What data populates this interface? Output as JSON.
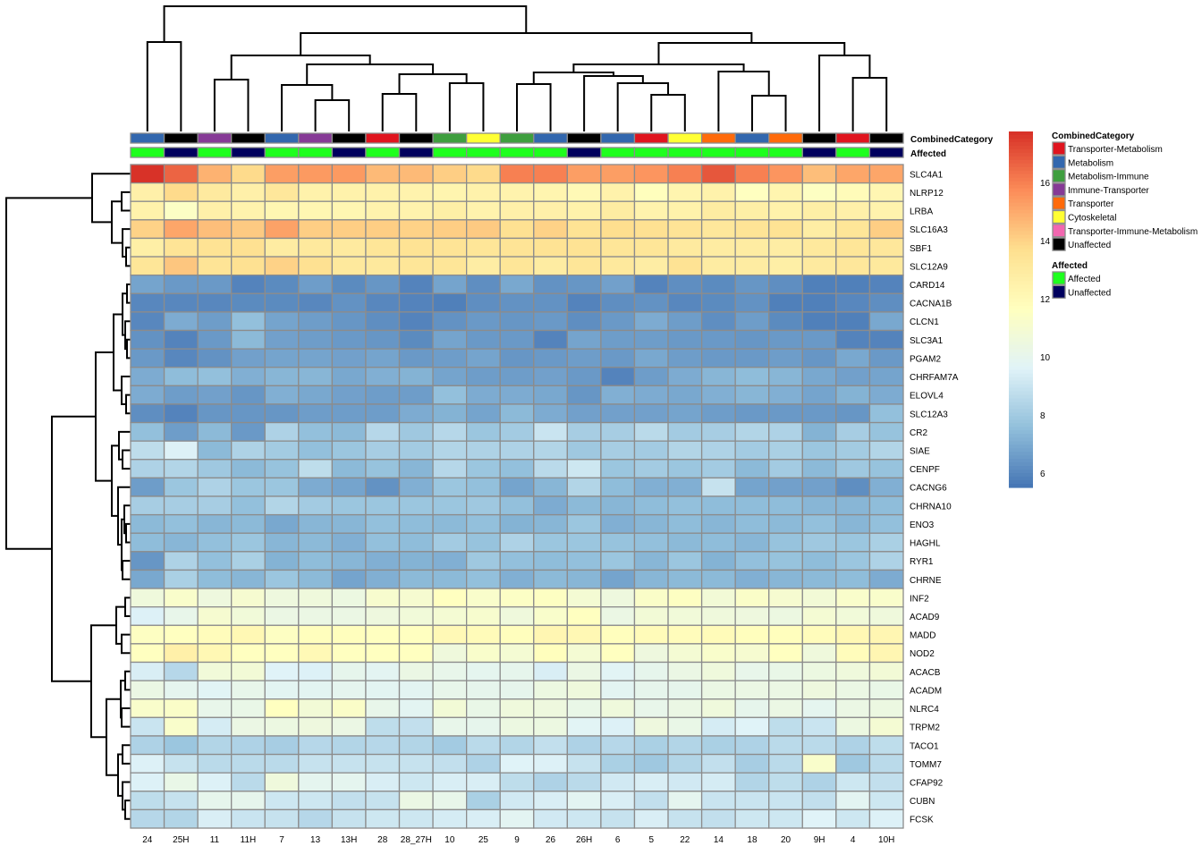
{
  "chart_data": {
    "type": "heatmap",
    "columns": [
      "24",
      "25H",
      "11",
      "11H",
      "7",
      "13",
      "13H",
      "28",
      "28_27H",
      "10",
      "25",
      "9",
      "26",
      "26H",
      "6",
      "5",
      "22",
      "14",
      "18",
      "20",
      "9H",
      "4",
      "10H"
    ],
    "rows": [
      "SLC4A1",
      "NLRP12",
      "LRBA",
      "SLC16A3",
      "SBF1",
      "SLC12A9",
      "CARD14",
      "CACNA1B",
      "CLCN1",
      "SLC3A1",
      "PGAM2",
      "CHRFAM7A",
      "ELOVL4",
      "SLC12A3",
      "CR2",
      "SIAE",
      "CENPF",
      "CACNG6",
      "CHRNA10",
      "ENO3",
      "HAGHL",
      "RYR1",
      "CHRNE",
      "INF2",
      "ACAD9",
      "MADD",
      "NOD2",
      "ACACB",
      "ACADM",
      "NLRC4",
      "TRPM2",
      "TACO1",
      "TOMM7",
      "CFAP92",
      "CUBN",
      "FCSK"
    ],
    "values": [
      [
        17.7,
        16.6,
        14.8,
        13.8,
        15.3,
        15.4,
        15.4,
        14.6,
        14.6,
        14.1,
        13.8,
        16.0,
        16.0,
        15.3,
        15.3,
        15.5,
        16.0,
        16.9,
        16.0,
        15.5,
        14.5,
        15.1,
        15.1
      ],
      [
        12.6,
        13.8,
        13.0,
        12.6,
        13.2,
        12.5,
        12.5,
        12.5,
        12.4,
        12.3,
        12.5,
        12.4,
        12.3,
        12.0,
        12.5,
        11.7,
        12.3,
        12.5,
        11.6,
        12.3,
        11.5,
        11.9,
        12.2
      ],
      [
        12.5,
        11.4,
        12.6,
        12.4,
        12.2,
        12.2,
        12.2,
        12.4,
        12.4,
        12.7,
        12.4,
        12.6,
        12.6,
        12.5,
        12.9,
        12.4,
        12.5,
        12.9,
        12.7,
        12.5,
        12.7,
        12.6,
        12.4
      ],
      [
        14.0,
        15.1,
        14.5,
        14.2,
        15.2,
        14.1,
        14.1,
        14.1,
        14.0,
        14.1,
        14.2,
        13.6,
        14.0,
        13.5,
        13.7,
        13.6,
        13.4,
        13.2,
        13.4,
        13.5,
        12.8,
        13.3,
        14.1
      ],
      [
        12.7,
        13.4,
        13.5,
        13.6,
        12.9,
        13.1,
        13.0,
        13.3,
        13.5,
        13.4,
        13.3,
        13.4,
        13.5,
        13.5,
        13.3,
        13.3,
        13.0,
        12.9,
        12.9,
        12.8,
        13.1,
        13.3,
        13.2
      ],
      [
        13.3,
        14.3,
        13.4,
        13.6,
        14.0,
        13.6,
        13.1,
        13.1,
        13.3,
        13.3,
        12.8,
        13.3,
        12.9,
        13.3,
        13.1,
        12.8,
        13.5,
        12.9,
        12.9,
        12.7,
        13.0,
        13.2,
        13.1
      ],
      [
        6.8,
        6.5,
        6.5,
        5.9,
        6.1,
        6.6,
        6.1,
        6.4,
        5.9,
        6.8,
        6.2,
        6.9,
        6.3,
        6.4,
        6.7,
        5.9,
        6.2,
        6.1,
        6.4,
        6.2,
        5.8,
        5.8,
        5.9
      ],
      [
        6.0,
        6.0,
        6.0,
        6.1,
        6.1,
        6.0,
        6.3,
        6.0,
        5.9,
        5.8,
        6.2,
        6.3,
        6.3,
        5.9,
        6.2,
        6.3,
        6.0,
        6.1,
        6.3,
        5.8,
        5.8,
        6.0,
        6.2
      ],
      [
        6.0,
        7.0,
        6.6,
        7.6,
        6.8,
        6.6,
        6.4,
        6.2,
        5.9,
        6.3,
        6.5,
        6.4,
        6.5,
        6.2,
        6.5,
        7.0,
        6.6,
        6.2,
        6.6,
        6.1,
        5.8,
        5.8,
        6.9
      ],
      [
        6.3,
        5.9,
        6.5,
        7.4,
        6.7,
        6.6,
        6.5,
        6.4,
        6.1,
        6.8,
        6.5,
        6.5,
        5.9,
        6.8,
        6.6,
        6.6,
        6.5,
        6.5,
        6.4,
        6.5,
        6.5,
        5.9,
        5.9
      ],
      [
        6.5,
        6.0,
        6.3,
        6.7,
        6.8,
        6.8,
        6.7,
        6.8,
        6.5,
        6.6,
        6.8,
        6.4,
        6.5,
        6.6,
        6.5,
        6.9,
        6.6,
        6.5,
        6.5,
        6.6,
        6.4,
        6.9,
        6.5
      ],
      [
        7.0,
        7.5,
        7.6,
        7.1,
        7.3,
        7.3,
        6.9,
        7.1,
        7.2,
        6.8,
        6.6,
        6.6,
        6.7,
        6.5,
        5.9,
        6.6,
        7.0,
        7.3,
        7.5,
        7.3,
        6.9,
        6.7,
        6.8
      ],
      [
        7.0,
        6.6,
        6.7,
        6.4,
        7.1,
        6.9,
        6.7,
        6.6,
        6.6,
        7.6,
        7.0,
        7.0,
        6.9,
        6.4,
        7.1,
        7.0,
        6.9,
        7.1,
        7.3,
        7.1,
        6.8,
        7.2,
        7.0
      ],
      [
        6.2,
        5.9,
        6.4,
        6.4,
        6.4,
        6.6,
        6.6,
        6.6,
        7.0,
        7.2,
        6.8,
        7.4,
        7.0,
        6.7,
        6.7,
        6.7,
        6.8,
        6.6,
        6.5,
        6.5,
        6.5,
        6.4,
        7.6
      ],
      [
        7.6,
        6.6,
        7.4,
        6.5,
        8.3,
        7.6,
        7.4,
        8.5,
        7.9,
        8.5,
        7.8,
        8.0,
        9.0,
        8.1,
        8.1,
        8.6,
        8.0,
        8.1,
        8.4,
        8.3,
        7.2,
        8.1,
        7.7
      ],
      [
        8.7,
        9.5,
        7.4,
        8.3,
        8.0,
        7.6,
        7.8,
        8.1,
        8.0,
        8.4,
        8.3,
        8.3,
        8.4,
        7.9,
        8.1,
        8.0,
        8.4,
        8.3,
        8.0,
        8.2,
        7.8,
        8.0,
        8.4
      ],
      [
        8.3,
        8.4,
        7.9,
        7.4,
        7.7,
        8.7,
        7.4,
        7.7,
        7.3,
        8.5,
        7.8,
        7.6,
        8.6,
        9.1,
        7.8,
        8.0,
        7.8,
        8.0,
        7.4,
        8.0,
        7.4,
        7.9,
        7.7
      ],
      [
        6.6,
        7.8,
        8.3,
        7.8,
        7.8,
        7.0,
        6.8,
        6.3,
        7.1,
        7.8,
        7.6,
        6.8,
        7.3,
        8.4,
        7.5,
        7.1,
        7.1,
        8.9,
        6.8,
        6.7,
        6.7,
        6.2,
        7.1
      ],
      [
        8.1,
        8.1,
        8.1,
        7.6,
        8.4,
        8.0,
        7.8,
        7.8,
        7.8,
        7.8,
        7.9,
        7.6,
        7.0,
        7.4,
        7.3,
        7.5,
        7.6,
        7.5,
        7.5,
        7.5,
        7.3,
        7.3,
        7.5
      ],
      [
        7.4,
        7.6,
        7.3,
        7.4,
        6.9,
        7.3,
        7.3,
        7.6,
        7.5,
        7.4,
        7.6,
        7.2,
        7.3,
        7.8,
        7.1,
        7.3,
        7.5,
        7.3,
        7.5,
        7.4,
        7.6,
        7.3,
        7.6
      ],
      [
        7.5,
        7.3,
        7.6,
        7.8,
        7.3,
        7.4,
        7.1,
        7.6,
        7.5,
        8.0,
        7.7,
        8.3,
        7.8,
        7.8,
        7.7,
        7.6,
        7.4,
        7.5,
        7.3,
        7.7,
        7.9,
        7.8,
        8.2
      ],
      [
        6.4,
        8.3,
        7.6,
        8.2,
        7.2,
        7.5,
        7.3,
        7.1,
        7.2,
        7.1,
        7.9,
        7.6,
        7.5,
        7.6,
        7.8,
        7.3,
        7.8,
        7.2,
        7.6,
        7.7,
        7.5,
        7.8,
        8.3
      ],
      [
        6.9,
        8.2,
        7.5,
        7.3,
        7.8,
        7.4,
        6.8,
        7.1,
        7.4,
        7.4,
        7.6,
        7.1,
        7.4,
        7.3,
        6.8,
        7.3,
        7.4,
        7.4,
        7.1,
        7.3,
        7.4,
        7.5,
        7.0
      ],
      [
        10.6,
        11.2,
        10.5,
        11.0,
        10.5,
        10.6,
        10.4,
        11.1,
        11.0,
        11.6,
        11.2,
        11.4,
        11.5,
        10.9,
        10.5,
        11.3,
        11.5,
        10.8,
        11.3,
        11.0,
        10.8,
        11.2,
        11.2
      ],
      [
        9.5,
        10.1,
        11.0,
        10.7,
        10.3,
        10.3,
        10.3,
        10.5,
        10.7,
        10.9,
        11.1,
        10.6,
        11.2,
        11.6,
        10.3,
        10.8,
        10.7,
        10.6,
        10.5,
        10.4,
        10.9,
        10.7,
        10.6
      ],
      [
        11.5,
        11.6,
        11.8,
        12.1,
        11.5,
        11.7,
        11.7,
        11.6,
        11.6,
        12.0,
        11.9,
        11.7,
        12.2,
        12.1,
        11.7,
        11.9,
        11.8,
        11.9,
        11.7,
        11.7,
        11.8,
        12.1,
        12.2
      ],
      [
        11.6,
        12.6,
        12.1,
        11.6,
        11.6,
        12.0,
        11.6,
        11.6,
        11.6,
        10.6,
        11.2,
        10.9,
        11.7,
        10.9,
        11.6,
        10.5,
        10.9,
        11.2,
        11.0,
        11.6,
        10.6,
        11.8,
        12.2
      ],
      [
        9.4,
        8.5,
        10.7,
        10.8,
        9.6,
        9.5,
        10.0,
        9.8,
        10.3,
        10.1,
        9.9,
        10.0,
        9.4,
        10.3,
        9.7,
        10.0,
        10.3,
        10.6,
        10.1,
        10.2,
        10.4,
        10.6,
        10.8
      ],
      [
        10.3,
        9.9,
        9.7,
        10.1,
        9.8,
        9.8,
        9.9,
        9.8,
        9.8,
        10.1,
        10.0,
        10.0,
        10.4,
        10.6,
        9.8,
        10.0,
        10.0,
        10.3,
        10.3,
        10.3,
        10.5,
        10.3,
        10.2
      ],
      [
        11.2,
        11.3,
        10.1,
        10.2,
        11.6,
        10.8,
        11.3,
        10.1,
        9.8,
        10.8,
        10.2,
        10.6,
        10.5,
        10.2,
        10.6,
        10.1,
        10.3,
        10.6,
        10.0,
        10.3,
        9.9,
        10.3,
        10.4
      ],
      [
        9.0,
        11.2,
        9.3,
        10.3,
        10.4,
        10.5,
        10.3,
        8.7,
        8.8,
        10.1,
        10.0,
        10.4,
        10.4,
        9.7,
        9.5,
        10.5,
        10.2,
        9.3,
        9.6,
        8.7,
        9.0,
        10.4,
        10.9
      ],
      [
        8.3,
        7.8,
        8.4,
        8.3,
        8.1,
        8.5,
        8.4,
        8.5,
        8.4,
        8.0,
        8.6,
        8.4,
        8.8,
        8.3,
        8.5,
        8.2,
        8.4,
        8.2,
        8.3,
        8.6,
        8.6,
        8.3,
        8.7
      ],
      [
        9.5,
        8.9,
        8.6,
        8.6,
        8.6,
        8.9,
        8.9,
        8.9,
        8.9,
        8.8,
        8.3,
        9.6,
        9.5,
        8.9,
        8.2,
        7.9,
        8.4,
        8.8,
        8.1,
        8.6,
        11.2,
        7.9,
        8.6
      ],
      [
        9.5,
        10.2,
        9.5,
        8.6,
        10.6,
        9.9,
        9.9,
        9.4,
        9.1,
        9.4,
        9.4,
        8.7,
        8.3,
        8.6,
        9.2,
        9.4,
        9.2,
        9.3,
        8.4,
        8.7,
        8.3,
        9.1,
        8.8
      ],
      [
        8.7,
        8.9,
        10.0,
        10.0,
        9.1,
        9.1,
        8.8,
        8.9,
        10.3,
        10.1,
        8.2,
        9.2,
        9.4,
        9.8,
        9.4,
        8.8,
        9.9,
        9.0,
        9.0,
        9.0,
        8.8,
        9.8,
        9.1
      ],
      [
        8.5,
        8.4,
        9.4,
        9.0,
        8.9,
        8.5,
        8.9,
        9.1,
        9.1,
        9.3,
        9.4,
        9.8,
        9.2,
        9.1,
        8.9,
        9.4,
        8.9,
        8.8,
        9.1,
        9.1,
        9.6,
        9.1,
        9.5
      ]
    ],
    "color_range": [
      5.5,
      17.75
    ],
    "color_palette": [
      "#4575B4",
      "#91BFDB",
      "#E0F3F8",
      "#FFFFBF",
      "#FEE090",
      "#FC8D59",
      "#D73027"
    ],
    "colorbar_ticks": [
      "6",
      "8",
      "10",
      "12",
      "14",
      "16"
    ],
    "colorbar_tick_values": [
      6,
      8,
      10,
      12,
      14,
      16
    ],
    "annotations": {
      "combined_category": {
        "title": "CombinedCategory",
        "per_column": [
          "Metabolism",
          "Unaffected",
          "Immune-Transporter",
          "Unaffected",
          "Metabolism",
          "Immune-Transporter",
          "Unaffected",
          "Transporter-Metabolism",
          "Unaffected",
          "Metabolism-Immune",
          "Cytoskeletal",
          "Metabolism-Immune",
          "Metabolism",
          "Unaffected",
          "Metabolism",
          "Transporter-Metabolism",
          "Cytoskeletal",
          "Transporter",
          "Metabolism",
          "Transporter",
          "Unaffected",
          "Transporter-Metabolism",
          "Unaffected"
        ],
        "legend": [
          {
            "label": "Transporter-Metabolism",
            "color": "#E0141E"
          },
          {
            "label": "Metabolism",
            "color": "#3267AE"
          },
          {
            "label": "Metabolism-Immune",
            "color": "#3E9E3E"
          },
          {
            "label": "Immune-Transporter",
            "color": "#863A96"
          },
          {
            "label": "Transporter",
            "color": "#FF6A0A"
          },
          {
            "label": "Cytoskeletal",
            "color": "#FFFF33"
          },
          {
            "label": "Transporter-Immune-Metabolism",
            "color": "#F267B0"
          },
          {
            "label": "Unaffected",
            "color": "#000000"
          }
        ]
      },
      "affected": {
        "title": "Affected",
        "per_column": [
          "Affected",
          "Unaffected",
          "Affected",
          "Unaffected",
          "Affected",
          "Affected",
          "Unaffected",
          "Affected",
          "Unaffected",
          "Affected",
          "Affected",
          "Affected",
          "Affected",
          "Unaffected",
          "Affected",
          "Affected",
          "Affected",
          "Affected",
          "Affected",
          "Affected",
          "Unaffected",
          "Affected",
          "Unaffected"
        ],
        "legend": [
          {
            "label": "Affected",
            "color": "#1EFF1E"
          },
          {
            "label": "Unaffected",
            "color": "#00005E"
          }
        ]
      }
    },
    "row_clustering": true,
    "column_clustering": true
  }
}
